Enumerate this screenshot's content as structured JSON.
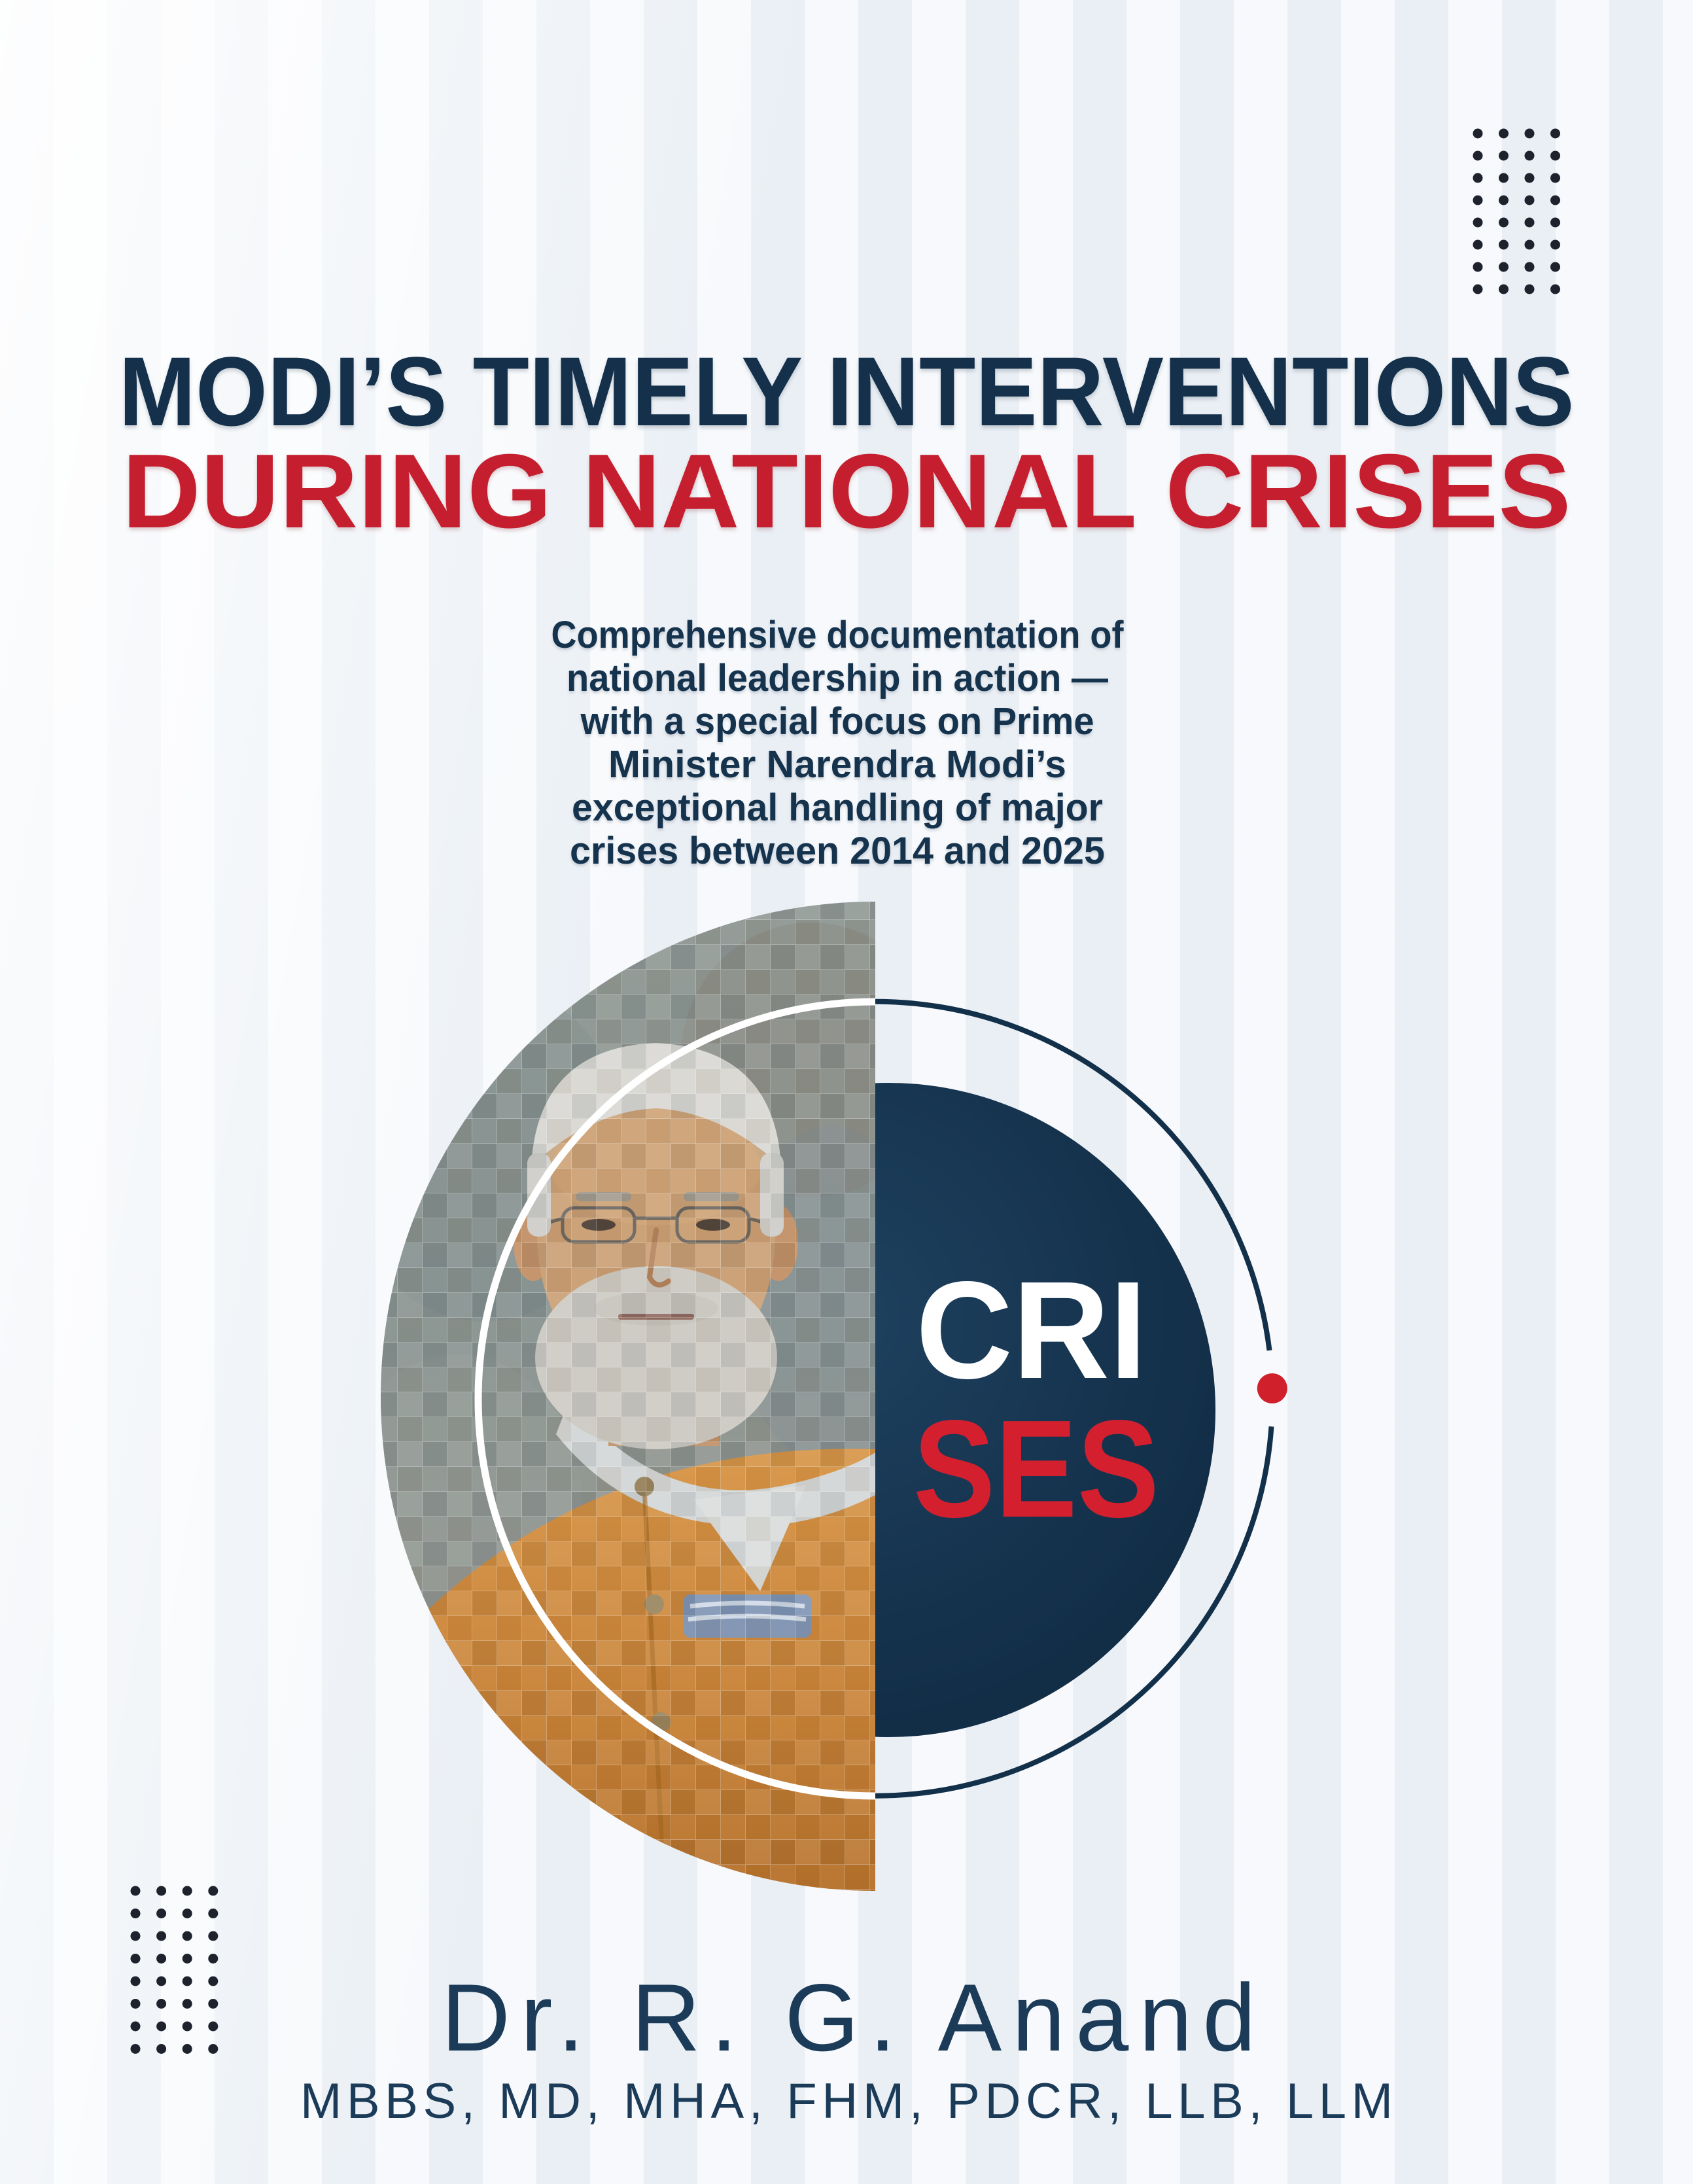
{
  "cover": {
    "title_line1": "MODI’S TIMELY INTERVENTIONS",
    "title_line2": "DURING NATIONAL CRISES",
    "subtitle_lines": [
      "Comprehensive documentation of",
      "national leadership in action —",
      "with a special focus on Prime",
      "Minister Narendra Modi’s",
      "exceptional handling of major",
      "crises between 2014 and 2025"
    ],
    "emblem": {
      "line1": "CRI",
      "line2": "SES"
    },
    "author": {
      "name": "Dr. R. G. Anand",
      "credentials": "MBBS, MD, MHA, FHM, PDCR, LLB, LLM"
    }
  },
  "colors": {
    "title_navy": "#14304b",
    "title_red": "#c51f2f",
    "subtitle_navy": "#16334e",
    "disc_navy": "#13304a",
    "emblem_white": "#ffffff",
    "emblem_red": "#d41f2f",
    "orbit_dot_red": "#cf202b",
    "author_navy": "#1b3b58",
    "background": "#f3f6f9"
  }
}
